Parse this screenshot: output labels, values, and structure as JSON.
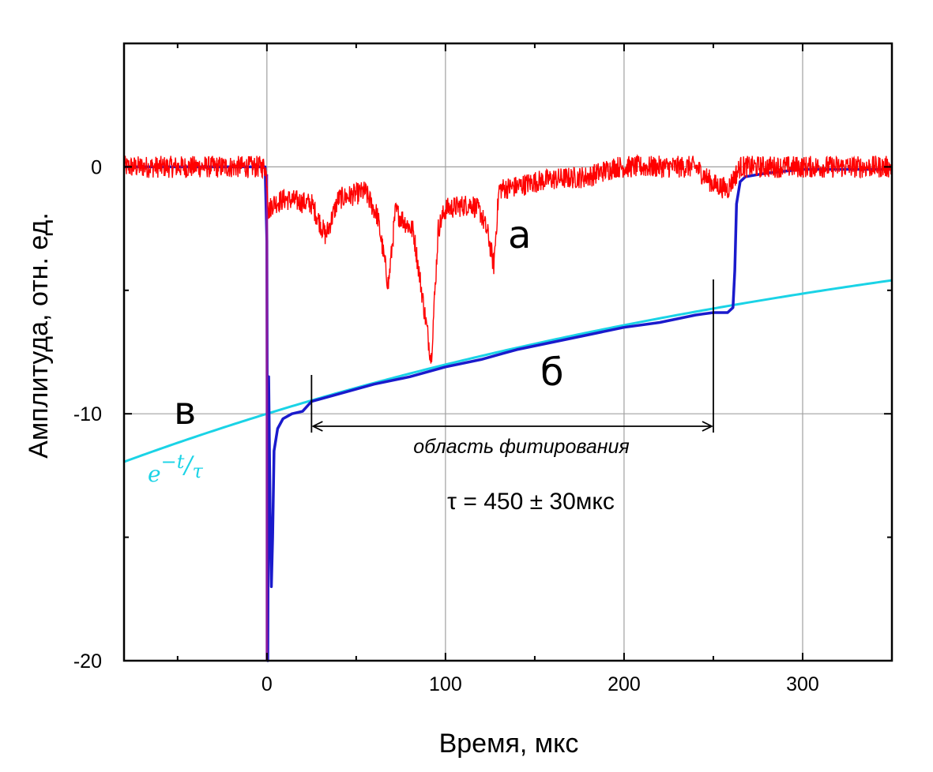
{
  "chart_data": {
    "type": "line",
    "title": "",
    "xlabel": "Время, мкс",
    "ylabel": "Амплитуда, отн. ед.",
    "xlim": [
      -80,
      350
    ],
    "ylim": [
      -20,
      5
    ],
    "x_ticks": [
      0,
      100,
      200,
      300
    ],
    "x_tick_labels": [
      "0",
      "100",
      "200",
      "300"
    ],
    "y_ticks": [
      -20,
      -10,
      0
    ],
    "y_tick_labels": [
      "-20",
      "-10",
      "0"
    ],
    "grid": true,
    "series": [
      {
        "label": "а",
        "color": "#ff0000",
        "style": "noisy",
        "noise_amplitude": 0.45,
        "x": [
          -80,
          -1,
          0,
          1,
          3,
          10,
          25,
          33,
          40,
          55,
          62,
          68,
          72,
          82,
          92,
          96,
          100,
          115,
          120,
          124,
          127,
          130,
          140,
          150,
          160,
          180,
          195,
          240,
          250,
          258,
          262,
          265,
          290,
          320,
          350
        ],
        "y": [
          0,
          0,
          -0.5,
          -1.8,
          -1.5,
          -1.3,
          -1.5,
          -2.8,
          -1.3,
          -1.0,
          -2.0,
          -4.8,
          -1.8,
          -2.6,
          -7.8,
          -2.5,
          -1.7,
          -1.5,
          -1.9,
          -2.8,
          -4.0,
          -0.9,
          -0.8,
          -0.6,
          -0.5,
          -0.4,
          0,
          0,
          -0.7,
          -0.9,
          -0.4,
          0,
          0,
          0,
          0
        ]
      },
      {
        "label": "б",
        "color": "#1a1acc",
        "style": "line",
        "x": [
          -80,
          -1,
          0,
          0.5,
          1,
          1.8,
          2.5,
          3.2,
          4,
          6,
          9,
          14,
          20,
          25,
          30,
          40,
          60,
          80,
          100,
          120,
          140,
          160,
          180,
          200,
          220,
          240,
          250,
          258,
          261,
          262,
          263,
          265,
          268,
          280,
          300,
          350
        ],
        "y": [
          0,
          0,
          -3,
          -20,
          -8.5,
          -14,
          -17,
          -15,
          -11.5,
          -10.6,
          -10.2,
          -10.0,
          -9.9,
          -9.5,
          -9.4,
          -9.2,
          -8.8,
          -8.5,
          -8.1,
          -7.8,
          -7.4,
          -7.1,
          -6.8,
          -6.5,
          -6.3,
          -6.0,
          -5.9,
          -5.9,
          -5.7,
          -4.2,
          -1.5,
          -0.6,
          -0.4,
          -0.25,
          -0.1,
          -0.1
        ]
      },
      {
        "label": "в",
        "color": "#1ad3e6",
        "style": "line",
        "function": "exp",
        "amplitude": -10,
        "tau": 450,
        "x_range": [
          -80,
          350
        ]
      }
    ],
    "annotations": {
      "label_a": "а",
      "label_b": "б",
      "label_v": "в",
      "fit_region_label": "область фитирования",
      "fit_region_x": [
        25,
        250
      ],
      "tau_text": "τ = 450 ± 30мкс",
      "formula_base": "e",
      "formula_exponent": "−t",
      "formula_denominator": "τ"
    }
  }
}
